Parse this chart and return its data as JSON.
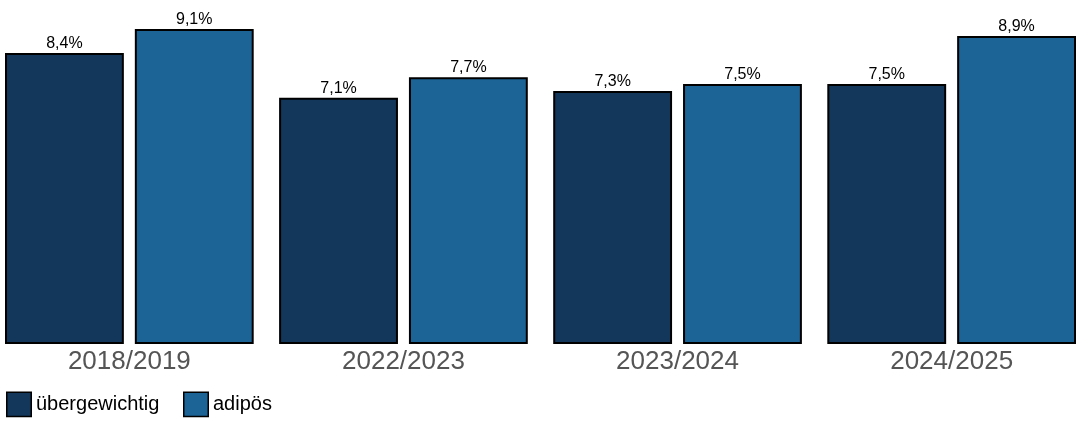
{
  "chart_data": {
    "type": "bar",
    "categories": [
      "2018/2019",
      "2022/2023",
      "2023/2024",
      "2024/2025"
    ],
    "series": [
      {
        "name": "übergewichtig",
        "color": "#12375a",
        "values": [
          8.4,
          7.1,
          7.3,
          7.5
        ],
        "value_labels": [
          "8,4%",
          "7,1%",
          "7,3%",
          "7,5%"
        ]
      },
      {
        "name": "adipös",
        "color": "#1c6496",
        "values": [
          9.1,
          7.7,
          7.5,
          8.9
        ],
        "value_labels": [
          "9,1%",
          "7,7%",
          "7,5%",
          "8,9%"
        ]
      }
    ],
    "legend": "bottom",
    "grid": false
  }
}
